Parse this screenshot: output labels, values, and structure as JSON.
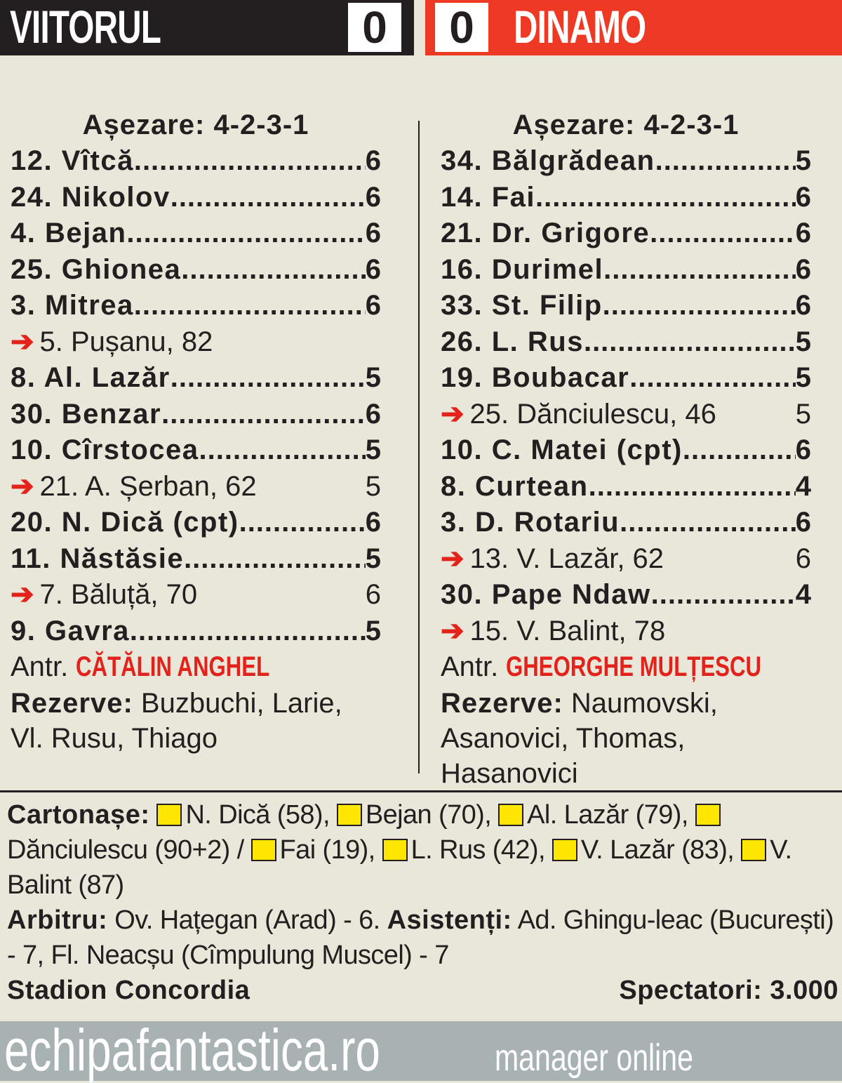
{
  "header": {
    "home_team": "VIITORUL",
    "home_score": "0",
    "away_score": "0",
    "away_team": "DINAMO",
    "colors": {
      "home": "#231f20",
      "away": "#ee3a24"
    }
  },
  "home": {
    "formation": "Așezare: 4-2-3-1",
    "players": [
      {
        "name": "12. Vîtcă",
        "rating": "6",
        "sub": false
      },
      {
        "name": "24. Nikolov",
        "rating": "6",
        "sub": false
      },
      {
        "name": "4. Bejan",
        "rating": "6",
        "sub": false
      },
      {
        "name": "25. Ghionea",
        "rating": "6",
        "sub": false
      },
      {
        "name": "3. Mitrea",
        "rating": "6",
        "sub": false
      },
      {
        "name": "5. Pușanu, 82",
        "rating": "",
        "sub": true
      },
      {
        "name": "8. Al. Lazăr",
        "rating": "5",
        "sub": false
      },
      {
        "name": "30. Benzar",
        "rating": "6",
        "sub": false
      },
      {
        "name": "10. Cîrstocea",
        "rating": "5",
        "sub": false
      },
      {
        "name": "21. A. Șerban, 62",
        "rating": "5",
        "sub": true
      },
      {
        "name": "20. N. Dică (cpt)",
        "rating": "6",
        "sub": false
      },
      {
        "name": "11. Năstăsie",
        "rating": "5",
        "sub": false
      },
      {
        "name": "7. Băluță, 70",
        "rating": "6",
        "sub": true
      },
      {
        "name": "9. Gavra",
        "rating": "5",
        "sub": false
      }
    ],
    "coach_label": "Antr.",
    "coach": "CĂTĂLIN ANGHEL",
    "reserves_label": "Rezerve:",
    "reserves": "Buzbuchi, Larie, Vl. Rusu, Thiago"
  },
  "away": {
    "formation": "Așezare: 4-2-3-1",
    "players": [
      {
        "name": "34. Bălgrădean",
        "rating": "5",
        "sub": false
      },
      {
        "name": "14. Fai",
        "rating": "6",
        "sub": false
      },
      {
        "name": "21. Dr. Grigore",
        "rating": "6",
        "sub": false
      },
      {
        "name": "16. Durimel",
        "rating": "6",
        "sub": false
      },
      {
        "name": "33. St. Filip",
        "rating": "6",
        "sub": false
      },
      {
        "name": "26. L. Rus",
        "rating": "5",
        "sub": false
      },
      {
        "name": "19. Boubacar",
        "rating": "5",
        "sub": false
      },
      {
        "name": "25. Dănciulescu, 46",
        "rating": "5",
        "sub": true
      },
      {
        "name": "10. C. Matei (cpt)",
        "rating": "6",
        "sub": false
      },
      {
        "name": "8. Curtean",
        "rating": "4",
        "sub": false
      },
      {
        "name": "3. D. Rotariu",
        "rating": "6",
        "sub": false
      },
      {
        "name": "13. V. Lazăr, 62",
        "rating": "6",
        "sub": true
      },
      {
        "name": "30. Pape Ndaw",
        "rating": "4",
        "sub": false
      },
      {
        "name": "15. V. Balint, 78",
        "rating": "",
        "sub": true
      }
    ],
    "coach_label": "Antr.",
    "coach": "GHEORGHE MULȚESCU",
    "reserves_label": "Rezerve:",
    "reserves": "Naumovski, Asanovici, Thomas, Hasanovici"
  },
  "cards": {
    "label": "Cartonașe:",
    "items": [
      "N. Dică (58),",
      "Bejan (70),",
      "Al. Lazăr (79),",
      "Dănciulescu (90+2) /",
      "Fai (19),",
      "L. Rus (42),",
      "V. Lazăr (83),",
      "V. Balint (87)"
    ],
    "card_color": "#ffe600"
  },
  "referee": {
    "label": "Arbitru:",
    "text": "Ov. Hațegan (Arad) - 6.",
    "assistants_label": "Asistenți:",
    "assistants": "Ad. Ghingu-leac (București) - 7, Fl. Neacșu (Cîmpulung Muscel) - 7"
  },
  "stadium": "Stadion Concordia",
  "spectators": "Spectatori: 3.000",
  "footer": {
    "site": "echipafantastica.ro",
    "tagline": "manager online"
  }
}
